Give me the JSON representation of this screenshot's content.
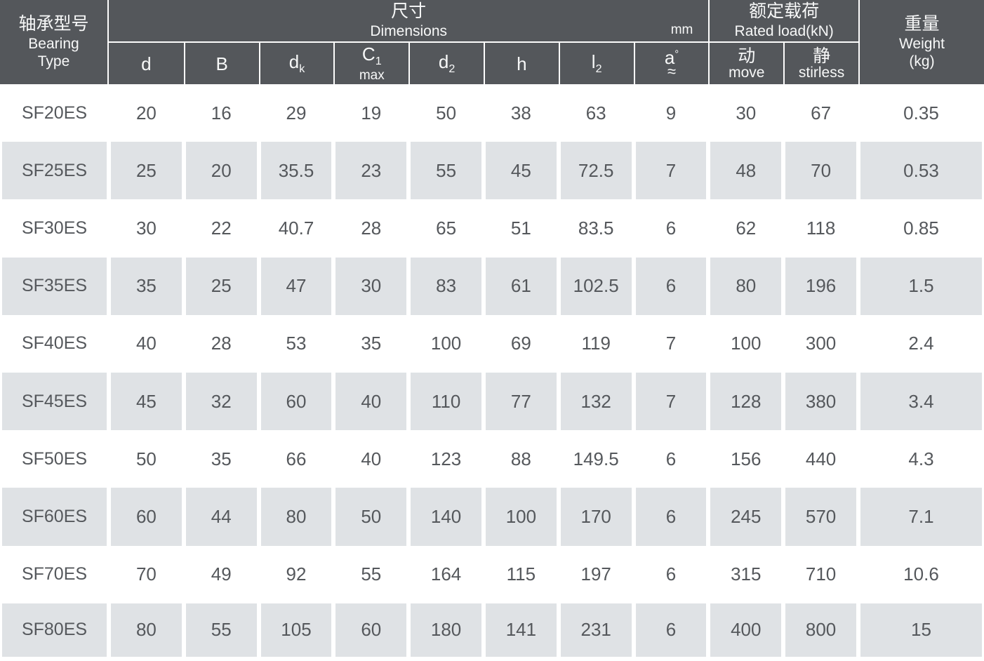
{
  "header": {
    "bearing_type": {
      "zh": "轴承型号",
      "en_line1": "Bearing",
      "en_line2": "Type"
    },
    "dimensions": {
      "zh": "尺寸",
      "en": "Dimensions",
      "unit": "mm"
    },
    "rated_load": {
      "zh": "额定载荷",
      "en": "Rated load(kN)"
    },
    "weight": {
      "zh": "重量",
      "en": "Weight",
      "unit": "(kg)"
    },
    "sub_columns": [
      {
        "main": "d"
      },
      {
        "main": "B"
      },
      {
        "main": "d",
        "sub": "k"
      },
      {
        "main": "C",
        "sub": "1",
        "below": "max"
      },
      {
        "main": "d",
        "sub": "2"
      },
      {
        "main": "h"
      },
      {
        "main": "l",
        "sub": "2"
      },
      {
        "main": "a",
        "sup": "°",
        "below_approx": "≈"
      },
      {
        "zh": "动",
        "en": "move"
      },
      {
        "zh": "静",
        "en": "stirless"
      }
    ]
  },
  "colors": {
    "header_bg": "#54575b",
    "header_text": "#f7f8f8",
    "divider": "#fdfdfd",
    "row_gray_bg": "#dfe2e5",
    "row_white_bg": "#ffffff",
    "data_text": "#55585c"
  },
  "chart_data": {
    "type": "table",
    "title": "Bearing dimensions and rated load table",
    "columns": [
      "Bearing Type",
      "d",
      "B",
      "dk",
      "C1 max",
      "d2",
      "h",
      "l2",
      "a°≈",
      "动 move",
      "静 stirless",
      "Weight (kg)"
    ],
    "unit_note": "mm"
  },
  "table": {
    "rows": [
      {
        "type": "SF20ES",
        "values": [
          "20",
          "16",
          "29",
          "19",
          "50",
          "38",
          "63",
          "9",
          "30",
          "67",
          "0.35"
        ]
      },
      {
        "type": "SF25ES",
        "values": [
          "25",
          "20",
          "35.5",
          "23",
          "55",
          "45",
          "72.5",
          "7",
          "48",
          "70",
          "0.53"
        ]
      },
      {
        "type": "SF30ES",
        "values": [
          "30",
          "22",
          "40.7",
          "28",
          "65",
          "51",
          "83.5",
          "6",
          "62",
          "118",
          "0.85"
        ]
      },
      {
        "type": "SF35ES",
        "values": [
          "35",
          "25",
          "47",
          "30",
          "83",
          "61",
          "102.5",
          "6",
          "80",
          "196",
          "1.5"
        ]
      },
      {
        "type": "SF40ES",
        "values": [
          "40",
          "28",
          "53",
          "35",
          "100",
          "69",
          "119",
          "7",
          "100",
          "300",
          "2.4"
        ]
      },
      {
        "type": "SF45ES",
        "values": [
          "45",
          "32",
          "60",
          "40",
          "110",
          "77",
          "132",
          "7",
          "128",
          "380",
          "3.4"
        ]
      },
      {
        "type": "SF50ES",
        "values": [
          "50",
          "35",
          "66",
          "40",
          "123",
          "88",
          "149.5",
          "6",
          "156",
          "440",
          "4.3"
        ]
      },
      {
        "type": "SF60ES",
        "values": [
          "60",
          "44",
          "80",
          "50",
          "140",
          "100",
          "170",
          "6",
          "245",
          "570",
          "7.1"
        ]
      },
      {
        "type": "SF70ES",
        "values": [
          "70",
          "49",
          "92",
          "55",
          "164",
          "115",
          "197",
          "6",
          "315",
          "710",
          "10.6"
        ]
      },
      {
        "type": "SF80ES",
        "values": [
          "80",
          "55",
          "105",
          "60",
          "180",
          "141",
          "231",
          "6",
          "400",
          "800",
          "15"
        ]
      }
    ]
  }
}
